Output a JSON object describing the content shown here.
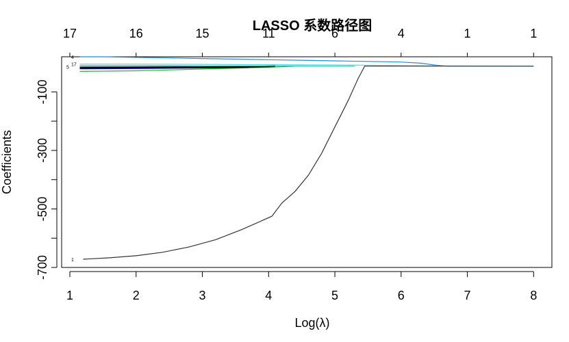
{
  "chart_data": {
    "type": "line",
    "title": "LASSO 系数路径图",
    "xlabel": "Log(λ)",
    "ylabel": "Coefficients",
    "xlim": [
      1.0,
      8.1
    ],
    "ylim": [
      -700,
      20
    ],
    "x_ticks": [
      1,
      2,
      3,
      4,
      5,
      6,
      7,
      8
    ],
    "x_tick_labels": [
      "1",
      "2",
      "3",
      "4",
      "5",
      "6",
      "7",
      "8"
    ],
    "y_ticks": [
      -700,
      -500,
      -300,
      -100
    ],
    "y_tick_labels": [
      "-700",
      "-500",
      "-300",
      "-100"
    ],
    "top_ticks": [
      1.0,
      2.0,
      3.0,
      4.0,
      5.0,
      6.0,
      7.0,
      8.0
    ],
    "top_tick_labels": [
      "17",
      "16",
      "15",
      "11",
      "6",
      "4",
      "1",
      "1"
    ],
    "grid": false,
    "series": [
      {
        "label": "4",
        "color": "#1f8ad6",
        "x": [
          1.15,
          1.5,
          2.0,
          2.5,
          3.0,
          3.5,
          4.0,
          4.5,
          5.0,
          5.5,
          6.0,
          6.3,
          6.5,
          6.7,
          8.0
        ],
        "y": [
          20,
          20,
          18,
          16,
          14,
          12,
          10,
          8,
          6,
          4,
          2,
          -2,
          -8,
          -12,
          -12
        ]
      },
      {
        "label": "17",
        "color": "#4dd6e8",
        "x": [
          1.15,
          2.0,
          3.0,
          4.0,
          5.0,
          6.0,
          6.5,
          8.0
        ],
        "y": [
          -5,
          -5,
          -6,
          -7,
          -8,
          -10,
          -11,
          -12
        ]
      },
      {
        "label": "",
        "color": "#22bb33",
        "x": [
          1.15,
          2.0,
          3.0,
          4.0,
          4.3,
          4.4
        ],
        "y": [
          -30,
          -28,
          -22,
          -16,
          -13,
          -12
        ]
      },
      {
        "label": "",
        "color": "#b040c0",
        "x": [
          1.15,
          2.0,
          3.0,
          3.5,
          3.7,
          3.75
        ],
        "y": [
          -14,
          -14,
          -13,
          -13,
          -12,
          -12
        ]
      },
      {
        "label": "",
        "color": "#2020c0",
        "x": [
          1.15,
          2.0,
          3.0,
          3.5,
          3.7
        ],
        "y": [
          -20,
          -19,
          -17,
          -16,
          -15
        ]
      },
      {
        "label": "",
        "color": "#000000",
        "x": [
          1.15,
          2.0,
          3.0,
          3.8,
          4.1
        ],
        "y": [
          -18,
          -17,
          -16,
          -14,
          -12
        ]
      },
      {
        "label": "",
        "color": "#30c0a0",
        "x": [
          1.15,
          2.0,
          3.0,
          4.0,
          5.0,
          5.3
        ],
        "y": [
          -10,
          -10,
          -11,
          -11,
          -12,
          -12
        ]
      },
      {
        "label": "1",
        "color": "#333333",
        "x": [
          1.2,
          1.6,
          2.0,
          2.4,
          2.8,
          3.2,
          3.6,
          3.9,
          4.05,
          4.2,
          4.4,
          4.6,
          4.8,
          5.0,
          5.2,
          5.35,
          5.45,
          8.0
        ],
        "y": [
          -672,
          -667,
          -660,
          -648,
          -630,
          -605,
          -570,
          -540,
          -525,
          -480,
          -440,
          -385,
          -310,
          -220,
          -130,
          -55,
          -12,
          -12
        ]
      }
    ],
    "left_end_labels": [
      "4",
      "17",
      "5",
      "1"
    ]
  }
}
